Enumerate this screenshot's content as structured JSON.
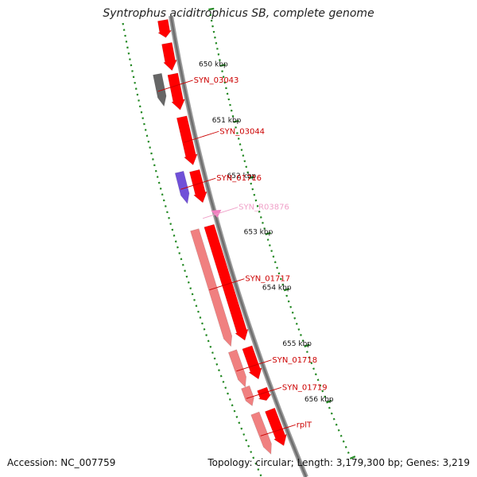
{
  "title": "Syntrophus aciditrophicus SB, complete genome",
  "footer": {
    "accession": "Accession: NC_007759",
    "stats": "Topology: circular; Length: 3,179,300 bp; Genes: 3,219"
  },
  "ticks": [
    {
      "label": "650 kbp",
      "kbp": 650
    },
    {
      "label": "651 kbp",
      "kbp": 651
    },
    {
      "label": "652 kbp",
      "kbp": 652
    },
    {
      "label": "653 kbp",
      "kbp": 653
    },
    {
      "label": "654 kbp",
      "kbp": 654
    },
    {
      "label": "655 kbp",
      "kbp": 655
    },
    {
      "label": "656 kbp",
      "kbp": 656
    }
  ],
  "genes": [
    {
      "name": "",
      "feature": "CDS",
      "strand": 1,
      "start": 649.05,
      "end": 649.35
    },
    {
      "name": "",
      "feature": "CDS",
      "strand": 1,
      "start": 649.45,
      "end": 649.92
    },
    {
      "name": "SYN_03043",
      "feature": "other",
      "strand": 2,
      "start": 649.93,
      "end": 650.48
    },
    {
      "name": "",
      "feature": "CDS",
      "strand": 1,
      "start": 649.98,
      "end": 650.6
    },
    {
      "name": "SYN_03044",
      "feature": "CDS",
      "strand": 1,
      "start": 650.72,
      "end": 651.55
    },
    {
      "name": "SYN_01716",
      "feature": "misc",
      "strand": 2,
      "start": 651.61,
      "end": 652.15
    },
    {
      "name": "",
      "feature": "CDS",
      "strand": 1,
      "start": 651.65,
      "end": 652.2
    },
    {
      "name": "SYN_R03876",
      "feature": "RNA",
      "strand": 0,
      "start": 652.4,
      "end": 652.48
    },
    {
      "name": "",
      "feature": "CDS",
      "strand": 1,
      "start": 652.6,
      "end": 654.58
    },
    {
      "name": "SYN_01717",
      "feature": "gene",
      "strand": 2,
      "start": 652.6,
      "end": 654.6
    },
    {
      "name": "SYN_01718",
      "feature": "gene",
      "strand": 2,
      "start": 654.68,
      "end": 655.3
    },
    {
      "name": "",
      "feature": "CDS",
      "strand": 1,
      "start": 654.7,
      "end": 655.25
    },
    {
      "name": "SYN_01719",
      "feature": "gene",
      "strand": 2,
      "start": 655.3,
      "end": 655.62
    },
    {
      "name": "",
      "feature": "CDS",
      "strand": 1,
      "start": 655.42,
      "end": 655.62
    },
    {
      "name": "rplT",
      "feature": "gene",
      "strand": 2,
      "start": 655.75,
      "end": 656.45
    },
    {
      "name": "",
      "feature": "CDS",
      "strand": 1,
      "start": 655.78,
      "end": 656.4
    }
  ],
  "colors": {
    "CDS": "#ff0000",
    "gene": "#f08080",
    "other": "#666666",
    "misc": "#7050d8",
    "RNA": "#f080c0",
    "backbone": "#888888",
    "tick": "#228822",
    "label": "#cc0000",
    "rnaLabel": "#f0a0c8"
  }
}
